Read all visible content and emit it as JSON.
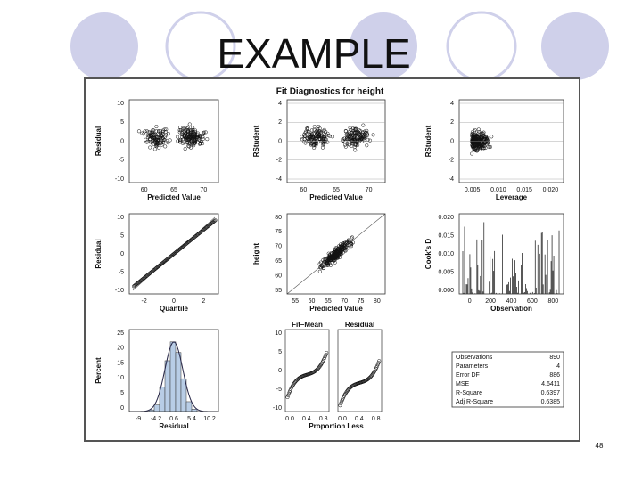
{
  "slide": {
    "title": "EXAMPLE",
    "page_number": "48"
  },
  "figure": {
    "title": "Fit Diagnostics for height",
    "panels": [
      {
        "ylabel": "Residual",
        "xlabel": "Predicted Value",
        "xticks": [
          "60",
          "65",
          "70"
        ],
        "yticks": [
          "10",
          "5",
          "0",
          "-5",
          "-10"
        ]
      },
      {
        "ylabel": "RStudent",
        "xlabel": "Predicted Value",
        "xticks": [
          "60",
          "65",
          "70"
        ],
        "yticks": [
          "4",
          "2",
          "0",
          "-2",
          "-4"
        ]
      },
      {
        "ylabel": "RStudent",
        "xlabel": "Leverage",
        "xticks": [
          "0.005",
          "0.010",
          "0.015",
          "0.020"
        ],
        "yticks": [
          "4",
          "2",
          "0",
          "-2",
          "-4"
        ]
      },
      {
        "ylabel": "Residual",
        "xlabel": "Quantile",
        "xticks": [
          "-2",
          "0",
          "2"
        ],
        "yticks": [
          "10",
          "5",
          "0",
          "-5",
          "-10"
        ]
      },
      {
        "ylabel": "height",
        "xlabel": "Predicted Value",
        "xticks": [
          "55",
          "60",
          "65",
          "70",
          "75",
          "80"
        ],
        "yticks": [
          "80",
          "75",
          "70",
          "65",
          "60",
          "55"
        ]
      },
      {
        "ylabel": "Cook's D",
        "xlabel": "Observation",
        "xticks": [
          "0",
          "200",
          "400",
          "600",
          "800"
        ],
        "yticks": [
          "0.020",
          "0.015",
          "0.010",
          "0.005",
          "0.000"
        ]
      },
      {
        "ylabel": "Percent",
        "xlabel": "Residual",
        "xticks": [
          "-9",
          "-4.2",
          "0.6",
          "5.4",
          "10.2"
        ],
        "yticks": [
          "25",
          "20",
          "15",
          "10",
          "5",
          "0"
        ]
      },
      {
        "xlabel": "Proportion Less",
        "subtitles": [
          "Fit–Mean",
          "Residual"
        ],
        "xticks": [
          "0.0",
          "0.4",
          "0.8",
          "0.0",
          "0.4",
          "0.8"
        ],
        "yticks": [
          "10",
          "5",
          "0",
          "-5",
          "-10"
        ]
      },
      {
        "stats": [
          [
            "Observations",
            "890"
          ],
          [
            "Parameters",
            "4"
          ],
          [
            "Error DF",
            "886"
          ],
          [
            "MSE",
            "4.6411"
          ],
          [
            "R-Square",
            "0.6397"
          ],
          [
            "Adj R-Square",
            "0.6385"
          ]
        ]
      }
    ]
  }
}
